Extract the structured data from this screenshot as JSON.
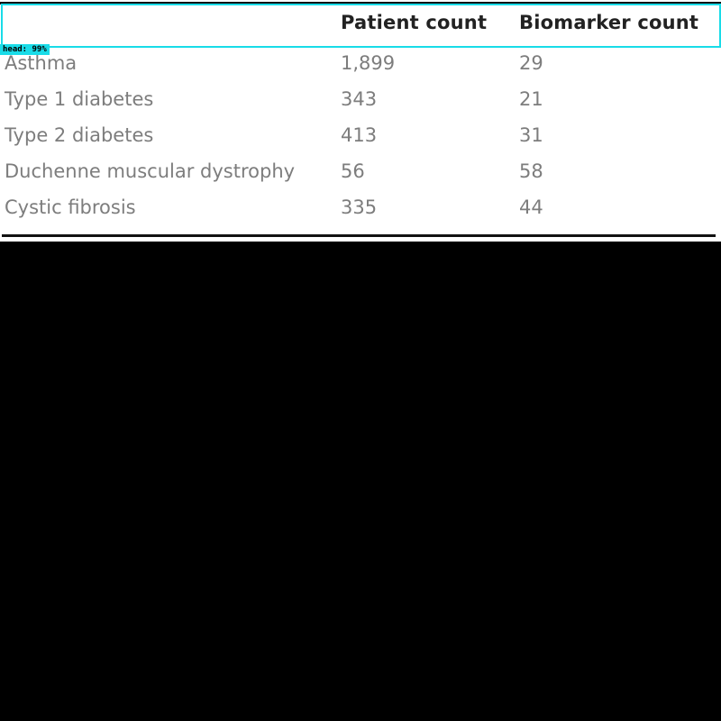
{
  "detection": {
    "label": "head: 99%",
    "color": "#19dce8"
  },
  "table": {
    "columns": [
      "",
      "Patient count",
      "Biomarker count"
    ],
    "rows": [
      {
        "condition": "Asthma",
        "patient_count": "1,899",
        "biomarker_count": "29"
      },
      {
        "condition": "Type 1 diabetes",
        "patient_count": "343",
        "biomarker_count": "21"
      },
      {
        "condition": "Type 2 diabetes",
        "patient_count": "413",
        "biomarker_count": "31"
      },
      {
        "condition": "Duchenne muscular dystrophy",
        "patient_count": "56",
        "biomarker_count": "58"
      },
      {
        "condition": "Cystic fibrosis",
        "patient_count": "335",
        "biomarker_count": "44"
      }
    ]
  }
}
